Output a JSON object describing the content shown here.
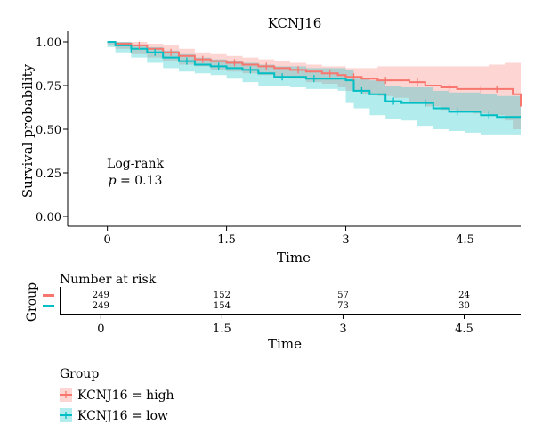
{
  "chart_data": {
    "type": "line",
    "title": "KCNJ16",
    "xlabel": "Time",
    "ylabel": "Survival probability",
    "xlim": [
      -0.5,
      5.2
    ],
    "ylim": [
      0,
      1
    ],
    "x_ticks": [
      "0",
      "1.5",
      "3",
      "4.5"
    ],
    "x_tick_values": [
      0,
      1.5,
      3,
      4.5
    ],
    "y_ticks": [
      "0.00",
      "0.25",
      "0.50",
      "0.75",
      "1.00"
    ],
    "y_tick_values": [
      0,
      0.25,
      0.5,
      0.75,
      1.0
    ],
    "annotation": {
      "line1": "Log-rank",
      "p_label": "p",
      "p_text": " = 0.13"
    },
    "legend_title": "Group",
    "series": [
      {
        "name": "KCNJ16 = high",
        "color": "#F8766D",
        "band_color": "#F8766D",
        "x": [
          0,
          0.1,
          0.3,
          0.5,
          0.7,
          0.9,
          1.1,
          1.3,
          1.5,
          1.7,
          1.9,
          2.1,
          2.3,
          2.5,
          2.7,
          2.9,
          3.0,
          3.2,
          3.4,
          3.6,
          3.8,
          4.0,
          4.2,
          4.4,
          4.6,
          4.8,
          5.0,
          5.1,
          5.2
        ],
        "y": [
          1.0,
          0.99,
          0.98,
          0.96,
          0.94,
          0.92,
          0.9,
          0.89,
          0.88,
          0.87,
          0.86,
          0.85,
          0.84,
          0.83,
          0.82,
          0.81,
          0.8,
          0.79,
          0.78,
          0.78,
          0.77,
          0.75,
          0.74,
          0.73,
          0.73,
          0.73,
          0.73,
          0.7,
          0.63
        ],
        "lower": [
          1.0,
          0.98,
          0.96,
          0.93,
          0.91,
          0.89,
          0.87,
          0.86,
          0.84,
          0.83,
          0.82,
          0.81,
          0.8,
          0.79,
          0.77,
          0.76,
          0.74,
          0.72,
          0.7,
          0.69,
          0.68,
          0.65,
          0.63,
          0.61,
          0.6,
          0.59,
          0.58,
          0.55,
          0.5
        ],
        "upper": [
          1.0,
          1.0,
          1.0,
          0.99,
          0.98,
          0.96,
          0.94,
          0.93,
          0.92,
          0.91,
          0.9,
          0.89,
          0.88,
          0.87,
          0.86,
          0.86,
          0.85,
          0.85,
          0.86,
          0.86,
          0.86,
          0.86,
          0.86,
          0.86,
          0.86,
          0.87,
          0.88,
          0.88,
          0.88
        ],
        "censor_x": [
          0.4,
          0.8,
          1.2,
          1.6,
          2.0,
          2.4,
          2.8,
          3.1,
          3.5,
          3.9,
          4.3,
          4.7,
          4.9
        ]
      },
      {
        "name": "KCNJ16 = low",
        "color": "#00BFC4",
        "band_color": "#00BFC4",
        "x": [
          0,
          0.1,
          0.3,
          0.5,
          0.7,
          0.9,
          1.1,
          1.3,
          1.5,
          1.7,
          1.9,
          2.1,
          2.3,
          2.5,
          2.7,
          2.9,
          3.0,
          3.1,
          3.3,
          3.5,
          3.7,
          3.9,
          4.1,
          4.3,
          4.5,
          4.7,
          4.9,
          5.2
        ],
        "y": [
          1.0,
          0.98,
          0.96,
          0.94,
          0.91,
          0.89,
          0.87,
          0.86,
          0.85,
          0.84,
          0.82,
          0.8,
          0.8,
          0.79,
          0.79,
          0.79,
          0.78,
          0.72,
          0.7,
          0.66,
          0.65,
          0.65,
          0.62,
          0.6,
          0.6,
          0.58,
          0.57,
          0.57
        ],
        "lower": [
          1.0,
          0.97,
          0.94,
          0.91,
          0.88,
          0.85,
          0.83,
          0.82,
          0.81,
          0.79,
          0.77,
          0.75,
          0.75,
          0.74,
          0.73,
          0.73,
          0.72,
          0.65,
          0.62,
          0.58,
          0.56,
          0.55,
          0.52,
          0.5,
          0.49,
          0.48,
          0.47,
          0.47
        ],
        "upper": [
          1.0,
          1.0,
          0.98,
          0.97,
          0.95,
          0.93,
          0.91,
          0.9,
          0.89,
          0.88,
          0.87,
          0.86,
          0.86,
          0.85,
          0.85,
          0.85,
          0.84,
          0.79,
          0.78,
          0.75,
          0.74,
          0.74,
          0.72,
          0.71,
          0.71,
          0.7,
          0.69,
          0.69
        ],
        "censor_x": [
          0.3,
          0.6,
          1.0,
          1.4,
          1.8,
          2.2,
          2.6,
          3.2,
          3.6,
          4.0,
          4.4,
          4.8
        ]
      }
    ],
    "risk_table": {
      "title": "Number at risk",
      "ylabel": "Group",
      "xlabel": "Time",
      "times": [
        0,
        1.5,
        3,
        4.5
      ],
      "rows": [
        {
          "group": "KCNJ16 = high",
          "color": "#F8766D",
          "counts": [
            "249",
            "152",
            "57",
            "24"
          ]
        },
        {
          "group": "KCNJ16 = low",
          "color": "#00BFC4",
          "counts": [
            "249",
            "154",
            "73",
            "30"
          ]
        }
      ]
    }
  }
}
